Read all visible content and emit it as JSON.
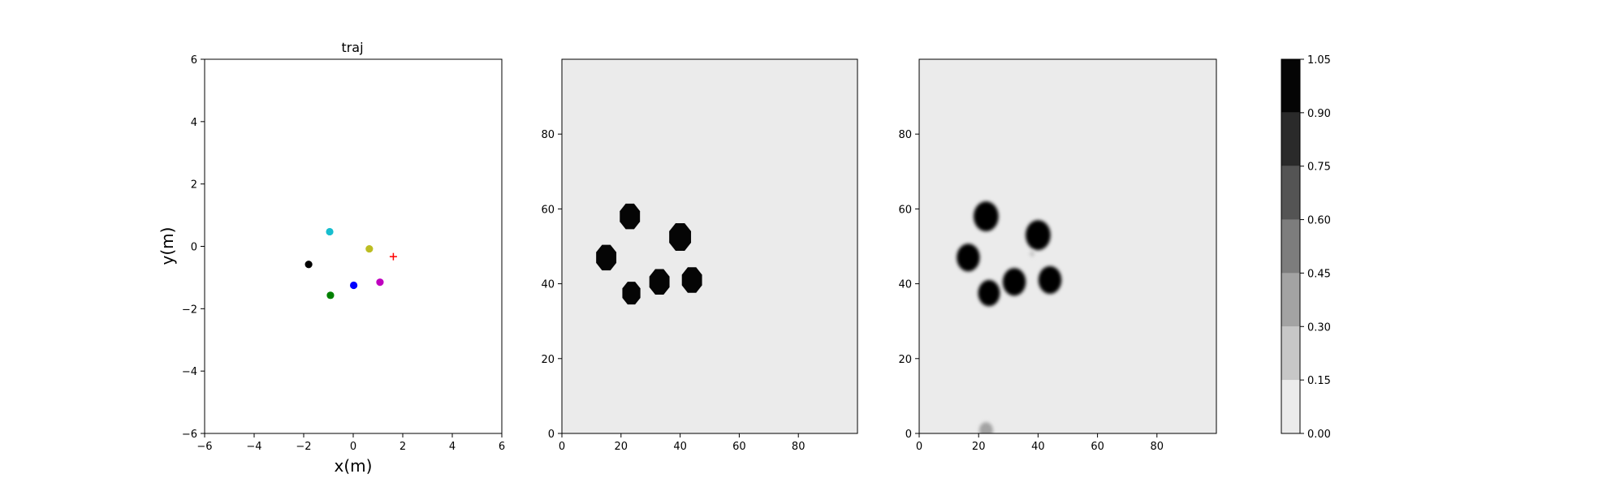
{
  "chart_data": [
    {
      "type": "scatter",
      "title": "traj",
      "xlabel": "x(m)",
      "ylabel": "y(m)",
      "xlim": [
        -6,
        6
      ],
      "ylim": [
        -6,
        6
      ],
      "xticks": [
        "−6",
        "−4",
        "−2",
        "0",
        "2",
        "4",
        "6"
      ],
      "yticks": [
        "−6",
        "−4",
        "−2",
        "0",
        "2",
        "4",
        "6"
      ],
      "grid": false,
      "points": [
        {
          "x": -0.95,
          "y": 0.47,
          "color": "#17becf",
          "marker": "circle"
        },
        {
          "x": 0.65,
          "y": -0.08,
          "color": "#bcbd22",
          "marker": "circle"
        },
        {
          "x": -1.8,
          "y": -0.58,
          "color": "#000000",
          "marker": "circle"
        },
        {
          "x": 0.02,
          "y": -1.25,
          "color": "#0000ff",
          "marker": "circle"
        },
        {
          "x": 1.08,
          "y": -1.15,
          "color": "#bf00bf",
          "marker": "circle"
        },
        {
          "x": -0.92,
          "y": -1.57,
          "color": "#008000",
          "marker": "circle"
        },
        {
          "x": 1.62,
          "y": -0.33,
          "color": "#ff0000",
          "marker": "plus"
        }
      ]
    },
    {
      "type": "heatmap",
      "title": "",
      "xlim": [
        0,
        100
      ],
      "ylim": [
        0,
        100
      ],
      "xticks": [
        "0",
        "20",
        "40",
        "60",
        "80"
      ],
      "yticks": [
        "0",
        "20",
        "40",
        "60",
        "80"
      ],
      "background_value": 0.0,
      "blobs": [
        {
          "cx": 23,
          "cy": 58,
          "r": 3.7,
          "value": 1.0
        },
        {
          "cx": 15,
          "cy": 47,
          "r": 3.7,
          "value": 1.0
        },
        {
          "cx": 40,
          "cy": 52.5,
          "r": 4.0,
          "value": 1.0
        },
        {
          "cx": 33,
          "cy": 40.5,
          "r": 3.7,
          "value": 1.0
        },
        {
          "cx": 44,
          "cy": 41,
          "r": 3.7,
          "value": 1.0
        },
        {
          "cx": 23.5,
          "cy": 37.5,
          "r": 3.3,
          "value": 1.0
        }
      ]
    },
    {
      "type": "heatmap",
      "title": "",
      "xlim": [
        0,
        100
      ],
      "ylim": [
        0,
        100
      ],
      "xticks": [
        "0",
        "20",
        "40",
        "60",
        "80"
      ],
      "yticks": [
        "0",
        "20",
        "40",
        "60",
        "80"
      ],
      "background_value": 0.0,
      "blobs": [
        {
          "cx": 22.5,
          "cy": 58,
          "r": 4.0,
          "value": 1.0
        },
        {
          "cx": 16.5,
          "cy": 47,
          "r": 3.7,
          "value": 1.0
        },
        {
          "cx": 40,
          "cy": 53,
          "r": 4.0,
          "value": 1.0
        },
        {
          "cx": 32,
          "cy": 40.5,
          "r": 3.7,
          "value": 1.0
        },
        {
          "cx": 44,
          "cy": 41,
          "r": 3.7,
          "value": 1.0
        },
        {
          "cx": 23.5,
          "cy": 37.5,
          "r": 3.5,
          "value": 0.9
        },
        {
          "cx": 22.5,
          "cy": 0.8,
          "r": 2.2,
          "value": 0.3
        },
        {
          "cx": 38,
          "cy": 48,
          "r": 0.8,
          "value": 0.2
        }
      ]
    }
  ],
  "colorbar": {
    "levels": [
      0.0,
      0.15,
      0.3,
      0.45,
      0.6,
      0.75,
      0.9,
      1.05
    ],
    "tick_labels": [
      "0.00",
      "0.15",
      "0.30",
      "0.45",
      "0.60",
      "0.75",
      "0.90",
      "1.05"
    ],
    "colors": [
      "#ebebeb",
      "#c7c7c7",
      "#a3a3a3",
      "#7d7d7d",
      "#545454",
      "#2a2a2a",
      "#050505"
    ]
  }
}
